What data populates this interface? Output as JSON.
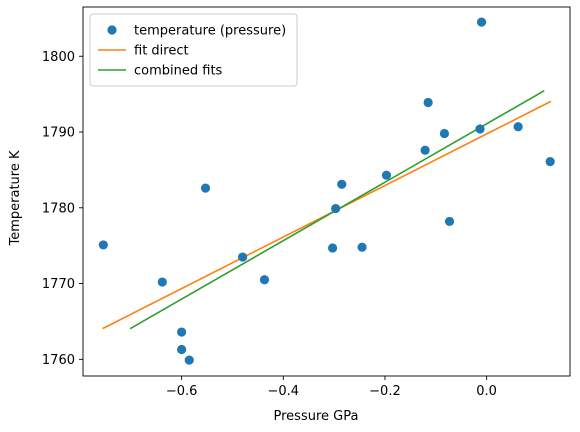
{
  "chart_data": {
    "type": "scatter",
    "title": "",
    "xlabel": "Pressure GPa",
    "ylabel": "Temperature K",
    "xlim": [
      -0.794,
      0.164
    ],
    "ylim": [
      1757.8,
      1806.5
    ],
    "xticks": [
      -0.6,
      -0.4,
      -0.2,
      0.0
    ],
    "xtick_labels": [
      "−0.6",
      "−0.4",
      "−0.2",
      "0.0"
    ],
    "yticks": [
      1760,
      1770,
      1780,
      1790,
      1800
    ],
    "ytick_labels": [
      "1760",
      "1770",
      "1780",
      "1790",
      "1800"
    ],
    "grid": false,
    "legend_position": "top-left",
    "series": [
      {
        "name": "temperature (pressure)",
        "kind": "scatter",
        "color": "#1f77b4",
        "points": [
          [
            -0.754,
            1775.1
          ],
          [
            -0.638,
            1770.2
          ],
          [
            -0.6,
            1763.6
          ],
          [
            -0.6,
            1761.3
          ],
          [
            -0.585,
            1759.9
          ],
          [
            -0.553,
            1782.6
          ],
          [
            -0.48,
            1773.5
          ],
          [
            -0.437,
            1770.5
          ],
          [
            -0.303,
            1774.7
          ],
          [
            -0.297,
            1779.9
          ],
          [
            -0.285,
            1783.1
          ],
          [
            -0.245,
            1774.8
          ],
          [
            -0.197,
            1784.3
          ],
          [
            -0.121,
            1787.6
          ],
          [
            -0.115,
            1793.9
          ],
          [
            -0.083,
            1789.8
          ],
          [
            -0.073,
            1778.2
          ],
          [
            -0.013,
            1790.4
          ],
          [
            -0.01,
            1804.5
          ],
          [
            0.062,
            1790.7
          ],
          [
            0.125,
            1786.1
          ]
        ]
      },
      {
        "name": "fit direct",
        "kind": "line",
        "color": "#ff7f0e",
        "points": [
          [
            -0.754,
            1764.1
          ],
          [
            0.125,
            1794.0
          ]
        ]
      },
      {
        "name": "combined fits",
        "kind": "line",
        "color": "#2ca02c",
        "points": [
          [
            -0.7,
            1764.1
          ],
          [
            0.112,
            1795.4
          ]
        ]
      }
    ]
  }
}
